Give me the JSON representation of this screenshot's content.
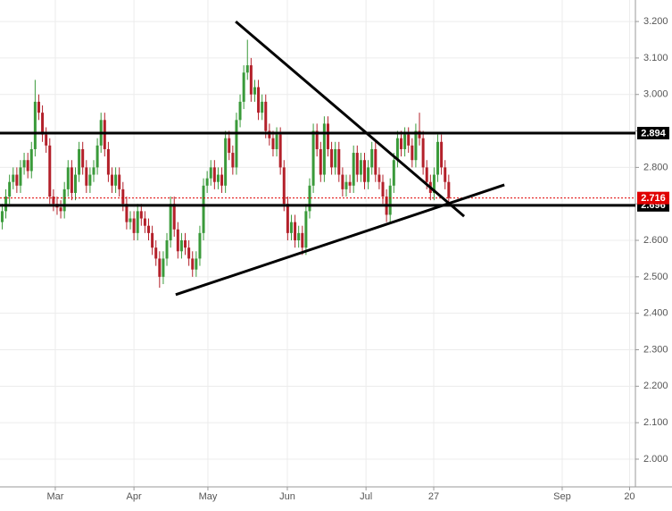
{
  "chart_data": {
    "type": "candlestick",
    "x": [
      0,
      1,
      2,
      3,
      4,
      5,
      6,
      7,
      8,
      9,
      10,
      11,
      12,
      13,
      14,
      15,
      16,
      17,
      18,
      19,
      20,
      21,
      22,
      23,
      24,
      25,
      26,
      27,
      28,
      29,
      30,
      31,
      32,
      33,
      34,
      35,
      36,
      37,
      38,
      39,
      40,
      41,
      42,
      43,
      44,
      45,
      46,
      47,
      48,
      49,
      50,
      51,
      52,
      53,
      54,
      55,
      56,
      57,
      58,
      59,
      60,
      61,
      62,
      63,
      64,
      65,
      66,
      67,
      68,
      69,
      70,
      71,
      72,
      73,
      74,
      75,
      76,
      77,
      78,
      79,
      80,
      81,
      82,
      83,
      84,
      85,
      86,
      87,
      88,
      89,
      90,
      91,
      92,
      93,
      94,
      95,
      96,
      97,
      98,
      99,
      100,
      101,
      102,
      103,
      104,
      105,
      106,
      107,
      108,
      109,
      110,
      111,
      112,
      113,
      114,
      115,
      116,
      117,
      118,
      119,
      120,
      121,
      122
    ],
    "open": [
      2.65,
      2.68,
      2.72,
      2.76,
      2.78,
      2.75,
      2.8,
      2.82,
      2.79,
      2.85,
      2.98,
      2.95,
      2.89,
      2.86,
      2.72,
      2.7,
      2.69,
      2.68,
      2.74,
      2.8,
      2.73,
      2.78,
      2.85,
      2.8,
      2.75,
      2.78,
      2.8,
      2.86,
      2.93,
      2.85,
      2.78,
      2.75,
      2.78,
      2.74,
      2.7,
      2.65,
      2.66,
      2.62,
      2.68,
      2.66,
      2.64,
      2.62,
      2.58,
      2.55,
      2.5,
      2.55,
      2.6,
      2.7,
      2.63,
      2.57,
      2.6,
      2.58,
      2.55,
      2.52,
      2.55,
      2.62,
      2.75,
      2.77,
      2.8,
      2.76,
      2.78,
      2.75,
      2.88,
      2.84,
      2.8,
      2.93,
      2.98,
      3.06,
      3.08,
      3.0,
      3.02,
      2.95,
      2.98,
      2.9,
      2.88,
      2.85,
      2.89,
      2.8,
      2.7,
      2.62,
      2.65,
      2.6,
      2.62,
      2.58,
      2.68,
      2.75,
      2.9,
      2.85,
      2.78,
      2.92,
      2.85,
      2.8,
      2.85,
      2.78,
      2.74,
      2.76,
      2.75,
      2.84,
      2.78,
      2.82,
      2.76,
      2.8,
      2.85,
      2.78,
      2.76,
      2.72,
      2.67,
      2.75,
      2.82,
      2.88,
      2.85,
      2.89,
      2.86,
      2.82,
      2.9,
      2.88,
      2.8,
      2.76,
      2.73,
      2.78,
      2.87,
      2.8,
      2.76
    ],
    "high": [
      2.7,
      2.74,
      2.78,
      2.8,
      2.8,
      2.82,
      2.84,
      2.84,
      2.87,
      3.04,
      3.0,
      2.97,
      2.91,
      2.88,
      2.74,
      2.72,
      2.71,
      2.76,
      2.82,
      2.82,
      2.8,
      2.87,
      2.87,
      2.82,
      2.8,
      2.82,
      2.88,
      2.95,
      2.95,
      2.87,
      2.8,
      2.8,
      2.8,
      2.76,
      2.72,
      2.68,
      2.68,
      2.7,
      2.7,
      2.68,
      2.66,
      2.64,
      2.6,
      2.57,
      2.57,
      2.62,
      2.72,
      2.72,
      2.65,
      2.62,
      2.62,
      2.6,
      2.57,
      2.57,
      2.64,
      2.77,
      2.79,
      2.82,
      2.82,
      2.8,
      2.8,
      2.9,
      2.9,
      2.86,
      2.95,
      3.0,
      3.08,
      3.15,
      3.1,
      3.04,
      3.04,
      3.0,
      3.0,
      2.92,
      2.9,
      2.91,
      2.91,
      2.82,
      2.72,
      2.67,
      2.67,
      2.64,
      2.64,
      2.7,
      2.77,
      2.92,
      2.92,
      2.87,
      2.94,
      2.94,
      2.87,
      2.87,
      2.87,
      2.8,
      2.78,
      2.78,
      2.86,
      2.86,
      2.84,
      2.84,
      2.82,
      2.87,
      2.87,
      2.8,
      2.78,
      2.74,
      2.77,
      2.84,
      2.9,
      2.9,
      2.91,
      2.91,
      2.88,
      2.92,
      2.95,
      2.9,
      2.82,
      2.78,
      2.8,
      2.89,
      2.89,
      2.82,
      2.78
    ],
    "low": [
      2.63,
      2.66,
      2.7,
      2.74,
      2.73,
      2.73,
      2.78,
      2.77,
      2.77,
      2.83,
      2.93,
      2.87,
      2.84,
      2.7,
      2.68,
      2.67,
      2.66,
      2.66,
      2.72,
      2.71,
      2.71,
      2.76,
      2.78,
      2.73,
      2.73,
      2.76,
      2.78,
      2.84,
      2.83,
      2.76,
      2.73,
      2.73,
      2.72,
      2.68,
      2.63,
      2.63,
      2.6,
      2.6,
      2.64,
      2.62,
      2.6,
      2.56,
      2.53,
      2.47,
      2.48,
      2.53,
      2.58,
      2.61,
      2.55,
      2.55,
      2.56,
      2.53,
      2.5,
      2.5,
      2.53,
      2.6,
      2.73,
      2.75,
      2.74,
      2.74,
      2.73,
      2.73,
      2.82,
      2.78,
      2.78,
      2.91,
      2.96,
      3.04,
      2.98,
      2.98,
      2.93,
      2.93,
      2.88,
      2.86,
      2.83,
      2.83,
      2.78,
      2.68,
      2.6,
      2.6,
      2.58,
      2.58,
      2.56,
      2.56,
      2.66,
      2.73,
      2.83,
      2.76,
      2.76,
      2.83,
      2.78,
      2.78,
      2.76,
      2.72,
      2.72,
      2.73,
      2.73,
      2.76,
      2.76,
      2.74,
      2.74,
      2.78,
      2.76,
      2.74,
      2.7,
      2.65,
      2.65,
      2.73,
      2.8,
      2.83,
      2.83,
      2.84,
      2.8,
      2.8,
      2.86,
      2.78,
      2.74,
      2.71,
      2.71,
      2.76,
      2.78,
      2.74,
      2.7
    ],
    "close": [
      2.68,
      2.72,
      2.76,
      2.78,
      2.75,
      2.8,
      2.82,
      2.79,
      2.85,
      2.98,
      2.95,
      2.89,
      2.86,
      2.72,
      2.7,
      2.69,
      2.68,
      2.74,
      2.8,
      2.73,
      2.78,
      2.85,
      2.8,
      2.75,
      2.78,
      2.8,
      2.86,
      2.93,
      2.85,
      2.78,
      2.75,
      2.78,
      2.74,
      2.7,
      2.65,
      2.66,
      2.62,
      2.68,
      2.66,
      2.64,
      2.62,
      2.58,
      2.55,
      2.5,
      2.55,
      2.6,
      2.7,
      2.63,
      2.57,
      2.6,
      2.58,
      2.55,
      2.52,
      2.55,
      2.62,
      2.75,
      2.77,
      2.8,
      2.76,
      2.78,
      2.75,
      2.88,
      2.84,
      2.8,
      2.93,
      2.98,
      3.06,
      3.08,
      3.0,
      3.02,
      2.95,
      2.98,
      2.9,
      2.88,
      2.85,
      2.89,
      2.8,
      2.7,
      2.62,
      2.65,
      2.6,
      2.62,
      2.58,
      2.68,
      2.75,
      2.9,
      2.85,
      2.78,
      2.92,
      2.85,
      2.8,
      2.85,
      2.78,
      2.74,
      2.76,
      2.75,
      2.84,
      2.78,
      2.82,
      2.76,
      2.8,
      2.85,
      2.78,
      2.76,
      2.72,
      2.67,
      2.75,
      2.82,
      2.88,
      2.85,
      2.89,
      2.86,
      2.82,
      2.9,
      2.88,
      2.8,
      2.76,
      2.73,
      2.78,
      2.87,
      2.8,
      2.76,
      2.716
    ],
    "up_color": "#3a9a3a",
    "down_color": "#b3202a",
    "xlim": [
      -0.6,
      173
    ],
    "xticks": [
      {
        "value": 14.5,
        "label": "Mar"
      },
      {
        "value": 36,
        "label": "Apr"
      },
      {
        "value": 56.2,
        "label": "May"
      },
      {
        "value": 77.9,
        "label": "Jun"
      },
      {
        "value": 99.4,
        "label": "Jul"
      },
      {
        "value": 117.9,
        "label": "27"
      },
      {
        "value": 153,
        "label": "Sep"
      },
      {
        "value": 171.4,
        "label": "20"
      }
    ],
    "ylim": [
      1.924,
      3.259
    ],
    "yticks": [
      {
        "value": 2.0,
        "label": "2.000"
      },
      {
        "value": 2.1,
        "label": "2.100"
      },
      {
        "value": 2.2,
        "label": "2.200"
      },
      {
        "value": 2.3,
        "label": "2.300"
      },
      {
        "value": 2.4,
        "label": "2.400"
      },
      {
        "value": 2.5,
        "label": "2.500"
      },
      {
        "value": 2.6,
        "label": "2.600"
      },
      {
        "value": 2.7,
        "label": "2.700"
      },
      {
        "value": 2.8,
        "label": "2.800"
      },
      {
        "value": 2.9,
        "label": "2.900"
      },
      {
        "value": 3.0,
        "label": "3.000"
      },
      {
        "value": 3.1,
        "label": "3.100"
      },
      {
        "value": 3.2,
        "label": "3.200"
      }
    ],
    "grid": true,
    "levels": [
      {
        "value": 2.894,
        "color": "#000000"
      },
      {
        "value": 2.696,
        "color": "#000000"
      }
    ],
    "current": {
      "value": 2.716,
      "color": "#e00000"
    },
    "trendlines": [
      {
        "x": [
          63.8,
          126.2
        ],
        "y": [
          3.2,
          2.666
        ]
      },
      {
        "x": [
          47.4,
          137.2
        ],
        "y": [
          2.451,
          2.752
        ]
      }
    ]
  }
}
